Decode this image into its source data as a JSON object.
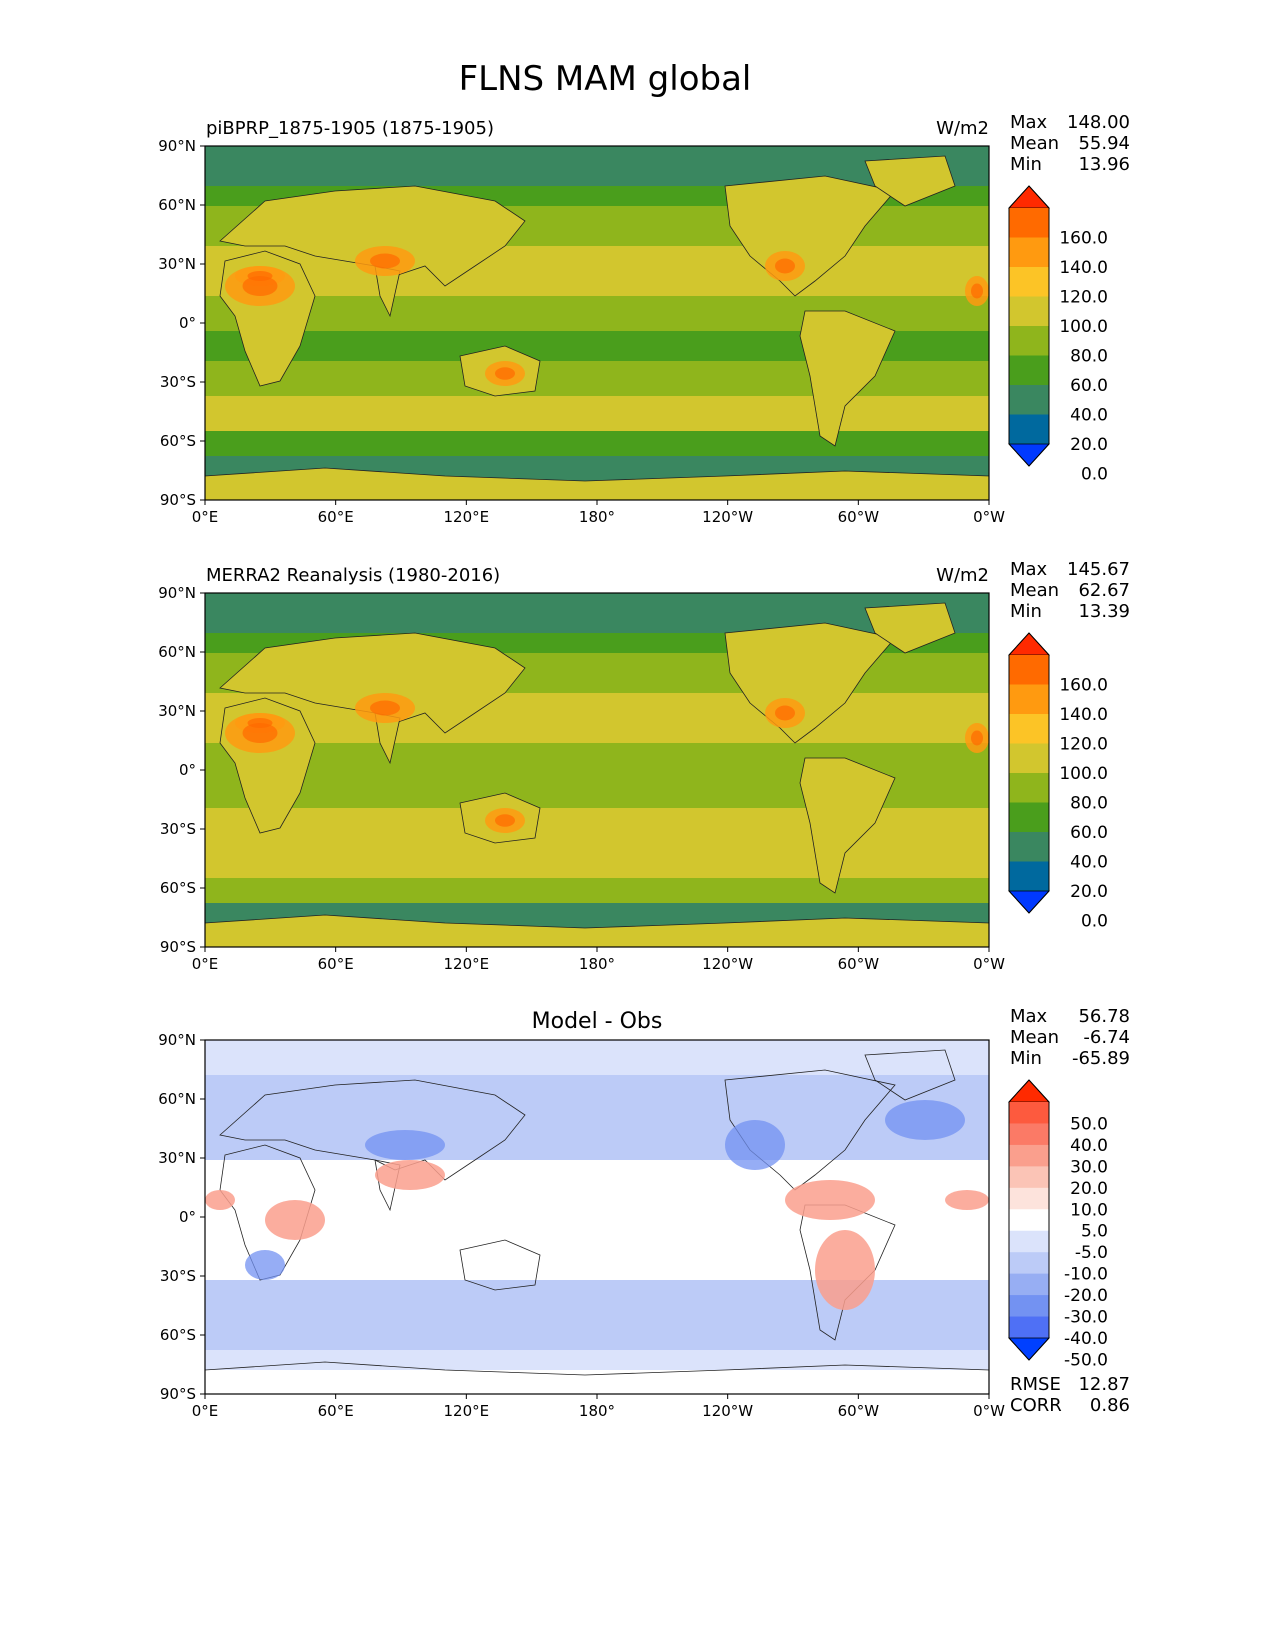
{
  "title": "FLNS MAM global",
  "lat_ticks": [
    "90°N",
    "60°N",
    "30°N",
    "0°",
    "30°S",
    "60°S",
    "90°S"
  ],
  "lon_ticks": [
    "0°E",
    "60°E",
    "120°E",
    "180°",
    "120°W",
    "60°W",
    "0°W"
  ],
  "panels": [
    {
      "left_label": "piBPRP_1875-1905 (1875-1905)",
      "center_label": "",
      "units": "W/m2",
      "stats": [
        {
          "label": "Max",
          "value": "148.00"
        },
        {
          "label": "Mean",
          "value": "55.94"
        },
        {
          "label": "Min",
          "value": "13.96"
        }
      ],
      "colorbar_labels": [
        "160.0",
        "140.0",
        "120.0",
        "100.0",
        "80.0",
        "60.0",
        "40.0",
        "20.0",
        "0.0"
      ],
      "colorbar_colors": [
        "#ff2a00",
        "#ff6a00",
        "#ff9a10",
        "#fcc426",
        "#d2c62e",
        "#8fb51c",
        "#4a9e1c",
        "#3a8760",
        "#00699e",
        "#0039ff"
      ]
    },
    {
      "left_label": "MERRA2 Reanalysis (1980-2016)",
      "center_label": "",
      "units": "W/m2",
      "stats": [
        {
          "label": "Max",
          "value": "145.67"
        },
        {
          "label": "Mean",
          "value": "62.67"
        },
        {
          "label": "Min",
          "value": "13.39"
        }
      ],
      "colorbar_labels": [
        "160.0",
        "140.0",
        "120.0",
        "100.0",
        "80.0",
        "60.0",
        "40.0",
        "20.0",
        "0.0"
      ],
      "colorbar_colors": [
        "#ff2a00",
        "#ff6a00",
        "#ff9a10",
        "#fcc426",
        "#d2c62e",
        "#8fb51c",
        "#4a9e1c",
        "#3a8760",
        "#00699e",
        "#0039ff"
      ]
    },
    {
      "left_label": "",
      "center_label": "Model - Obs",
      "units": "",
      "stats": [
        {
          "label": "Max",
          "value": "56.78"
        },
        {
          "label": "Mean",
          "value": "-6.74"
        },
        {
          "label": "Min",
          "value": "-65.89"
        }
      ],
      "colorbar_labels": [
        "50.0",
        "40.0",
        "30.0",
        "20.0",
        "10.0",
        "5.0",
        "-5.0",
        "-10.0",
        "-20.0",
        "-30.0",
        "-40.0",
        "-50.0"
      ],
      "colorbar_colors": [
        "#ff2a00",
        "#fd5a3e",
        "#fb7a66",
        "#fa9f8d",
        "#fbc4b6",
        "#fde3dc",
        "#ffffff",
        "#dbe3fb",
        "#bccbf7",
        "#97aef3",
        "#7392f2",
        "#4f70f5",
        "#0040ff"
      ],
      "footer_stats": [
        {
          "label": "RMSE",
          "value": "12.87"
        },
        {
          "label": "CORR",
          "value": "0.86"
        }
      ]
    }
  ]
}
